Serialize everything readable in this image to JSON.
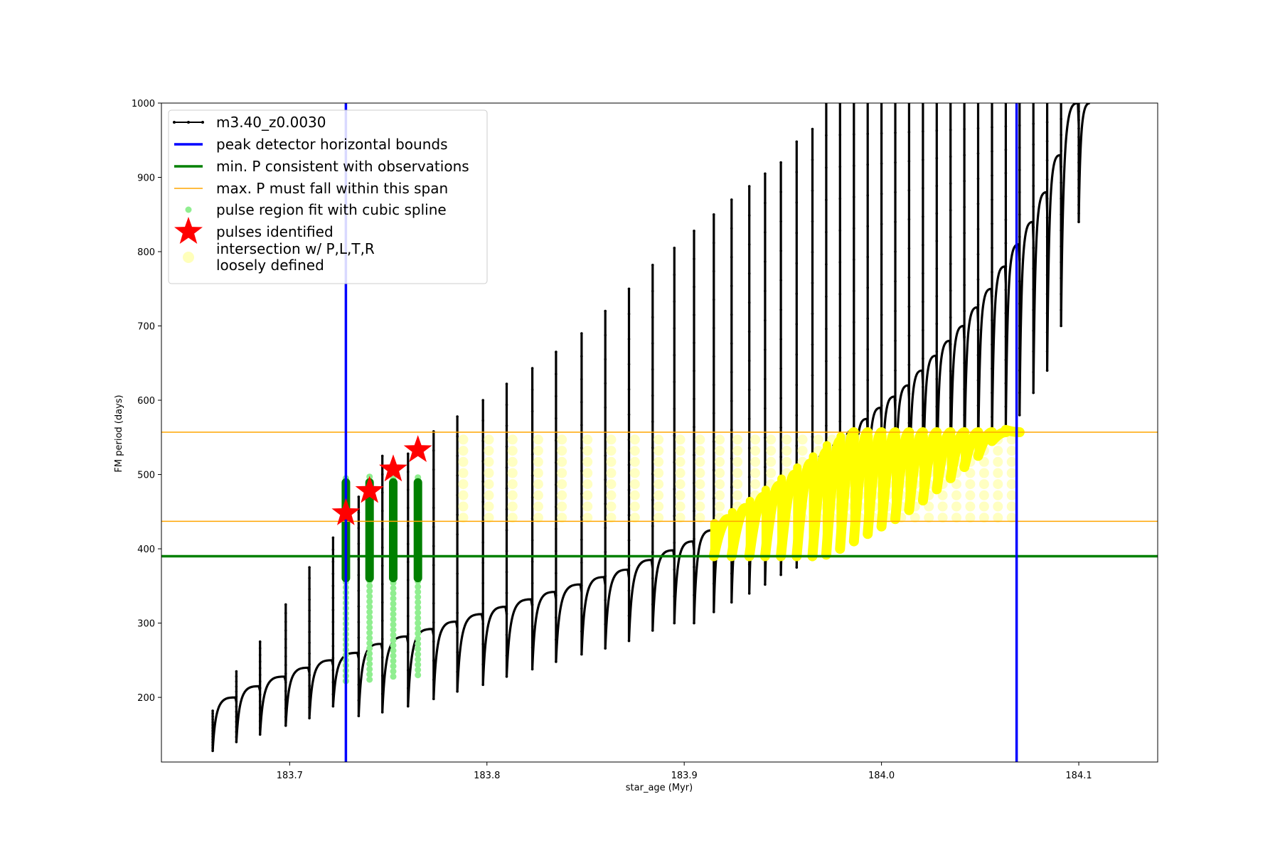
{
  "chart_data": {
    "type": "scatter",
    "xlabel": "star_age (Myr)",
    "ylabel": "FM period (days)",
    "xlim": [
      183.635,
      184.14
    ],
    "ylim": [
      113,
      1000
    ],
    "xticks": [
      "183.7",
      "183.8",
      "183.9",
      "184.0",
      "184.1"
    ],
    "yticks": [
      "200",
      "300",
      "400",
      "500",
      "600",
      "700",
      "800",
      "900",
      "1000"
    ],
    "grid": false,
    "legend_position": "upper-left",
    "legend": [
      {
        "label": "m3.40_z0.0030",
        "marker": "line-dot",
        "color": "#000000"
      },
      {
        "label": "peak detector horizontal bounds",
        "marker": "line",
        "color": "#0000ff"
      },
      {
        "label": "min. P consistent with observations",
        "marker": "line",
        "color": "#008000"
      },
      {
        "label": "max. P must fall within this span",
        "marker": "thin-line",
        "color": "#ffa500"
      },
      {
        "label": "pulse region fit with cubic spline",
        "marker": "dot",
        "color": "#90ee90"
      },
      {
        "label": "pulses identified",
        "marker": "star",
        "color": "#ff0000"
      },
      {
        "label_lines": [
          "intersection w/ P,L,T,R",
          "loosely defined"
        ],
        "marker": "circle",
        "color": "#ffffbb"
      }
    ],
    "track": {
      "name": "m3.40_z0.0030",
      "color": "#000000",
      "pulse_ages": [
        183.661,
        183.673,
        183.685,
        183.698,
        183.71,
        183.722,
        183.735,
        183.747,
        183.76,
        183.773,
        183.785,
        183.798,
        183.81,
        183.823,
        183.835,
        183.848,
        183.86,
        183.872,
        183.884,
        183.895,
        183.905,
        183.915,
        183.924,
        183.933,
        183.941,
        183.949,
        183.957,
        183.965,
        183.972,
        183.979,
        183.986,
        183.993,
        184.0,
        184.007,
        184.014,
        184.021,
        184.028,
        184.035,
        184.042,
        184.049,
        184.056,
        184.063,
        184.07,
        184.077,
        184.084,
        184.091,
        184.1
      ],
      "base_period": [
        128,
        140,
        150,
        162,
        172,
        188,
        175,
        180,
        188,
        198,
        208,
        217,
        228,
        238,
        248,
        258,
        266,
        276,
        290,
        300,
        300,
        315,
        328,
        340,
        352,
        365,
        375,
        385,
        392,
        400,
        410,
        420,
        430,
        440,
        452,
        465,
        480,
        495,
        510,
        525,
        545,
        560,
        580,
        610,
        640,
        700,
        840
      ],
      "plateau_period": [
        200,
        215,
        228,
        240,
        250,
        260,
        272,
        282,
        292,
        302,
        312,
        322,
        332,
        342,
        352,
        362,
        372,
        385,
        398,
        410,
        425,
        440,
        455,
        470,
        485,
        500,
        515,
        530,
        545,
        560,
        575,
        590,
        605,
        620,
        640,
        660,
        680,
        700,
        725,
        750,
        780,
        810,
        840,
        880,
        930,
        1000,
        1000
      ],
      "spike_period": [
        182,
        235,
        275,
        325,
        375,
        415,
        470,
        525,
        528,
        558,
        578,
        600,
        622,
        643,
        665,
        690,
        720,
        750,
        782,
        805,
        828,
        850,
        870,
        888,
        905,
        920,
        948,
        965,
        1000,
        1000,
        1000,
        1000,
        1000,
        1000,
        1000,
        1000,
        1000,
        1000,
        1000,
        1000,
        1000,
        1000,
        1000,
        1000,
        1000,
        1000,
        1000
      ]
    },
    "peak_detector_bounds": {
      "color": "#0000ff",
      "x": [
        183.7285,
        184.0685
      ]
    },
    "min_period_line": {
      "color": "#008000",
      "y": 390
    },
    "max_period_span": {
      "color": "#ffa500",
      "y": [
        437,
        557
      ]
    },
    "pulse_regions": {
      "color_fit": "#90ee90",
      "color_core": "#008000",
      "ages": [
        183.7285,
        183.7405,
        183.7525,
        183.765
      ],
      "y_min": [
        222,
        224,
        228,
        230
      ],
      "y_max": [
        500,
        500,
        500,
        500
      ],
      "core_y": [
        355,
        495
      ]
    },
    "pulses_identified": {
      "color": "#ff0000",
      "x": [
        183.7285,
        183.7405,
        183.7525,
        183.765
      ],
      "y": [
        448,
        478,
        507,
        533
      ]
    },
    "intersection_region": {
      "color": "#ffff00",
      "halo_color": "#ffffbb",
      "x_range": [
        183.912,
        184.068
      ],
      "y_range": [
        390,
        557
      ]
    }
  }
}
